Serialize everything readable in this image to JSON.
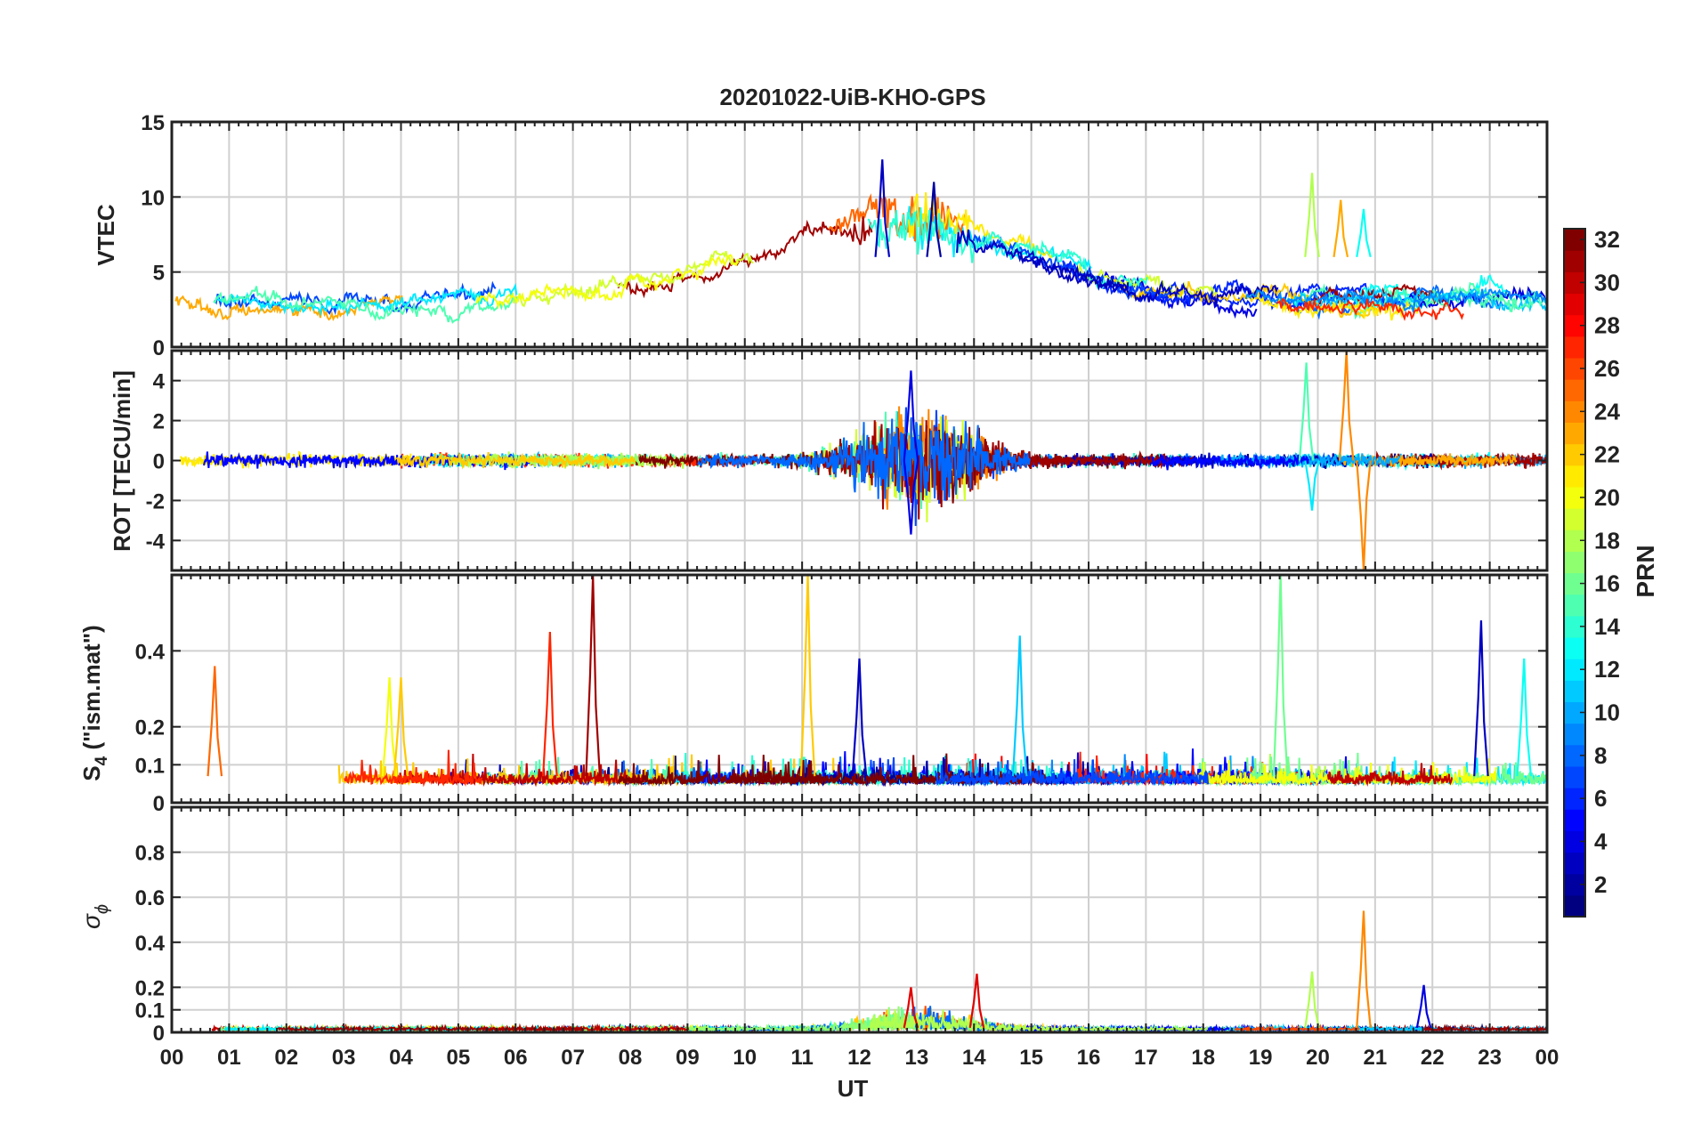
{
  "chart_data": {
    "type": "line",
    "title": "20201022-UiB-KHO-GPS",
    "xlabel": "UT",
    "x_ticks": [
      "00",
      "01",
      "02",
      "03",
      "04",
      "05",
      "06",
      "07",
      "08",
      "09",
      "10",
      "11",
      "12",
      "13",
      "14",
      "15",
      "16",
      "17",
      "18",
      "19",
      "20",
      "21",
      "22",
      "23",
      "00"
    ],
    "xlim": [
      0,
      24
    ],
    "grid": true,
    "colorbar": {
      "label": "PRN",
      "range": [
        1,
        32
      ],
      "ticks": [
        "2",
        "4",
        "6",
        "8",
        "10",
        "12",
        "14",
        "16",
        "18",
        "20",
        "22",
        "24",
        "26",
        "28",
        "30",
        "32"
      ],
      "tick_values": [
        2,
        4,
        6,
        8,
        10,
        12,
        14,
        16,
        18,
        20,
        22,
        24,
        26,
        28,
        30,
        32
      ],
      "colormap": "jet"
    },
    "panels": [
      {
        "id": "vtec",
        "ylabel": "VTEC",
        "ylim": [
          0,
          15
        ],
        "yticks": [
          0,
          5,
          10,
          15
        ],
        "ytick_labels": [
          "0",
          "5",
          "10",
          "15"
        ],
        "description": "Vertical TEC per satellite: ~2-5 at night, broad daytime maximum ~6-9 around 11-14 UT with peaks up to ~12.5 near 12.4 UT",
        "notable_peaks": [
          {
            "t": 12.4,
            "value": 12.5,
            "prn": 3
          },
          {
            "t": 13.3,
            "value": 11.0,
            "prn": 2
          },
          {
            "t": 19.9,
            "value": 11.6,
            "prn": 18
          },
          {
            "t": 20.4,
            "value": 9.8,
            "prn": 23
          },
          {
            "t": 20.8,
            "value": 9.2,
            "prn": 13
          }
        ]
      },
      {
        "id": "rot",
        "ylabel": "ROT [TECU/min]",
        "ylim": [
          -5.5,
          5.5
        ],
        "yticks": [
          -4,
          -2,
          0,
          2,
          4
        ],
        "ytick_labels": [
          "-4",
          "-2",
          "0",
          "2",
          "4"
        ],
        "description": "Rate of TEC change, noise around 0 with enhanced fluctuations 11-15 UT",
        "notable_peaks": [
          {
            "t": 12.9,
            "value": 4.5,
            "prn": 4
          },
          {
            "t": 12.9,
            "value": -3.7,
            "prn": 4
          },
          {
            "t": 20.5,
            "value": 5.5,
            "prn": 24
          },
          {
            "t": 20.8,
            "value": -5.5,
            "prn": 24
          },
          {
            "t": 19.8,
            "value": 4.9,
            "prn": 15
          },
          {
            "t": 19.9,
            "value": -2.5,
            "prn": 12
          }
        ]
      },
      {
        "id": "s4",
        "ylabel": "S4 (\"ism.mat\")",
        "ylabel_main": "S",
        "ylabel_sub": "4",
        "ylabel_rest": " (\"ism.mat\")",
        "ylim": [
          0,
          0.6
        ],
        "yticks": [
          0,
          0.1,
          0.2,
          0.4
        ],
        "ytick_labels": [
          "0",
          "0.1",
          "0.2",
          "0.4"
        ],
        "description": "Amplitude scintillation index, background ~0.05-0.1 with isolated spikes",
        "notable_peaks": [
          {
            "t": 0.75,
            "value": 0.36,
            "prn": 25
          },
          {
            "t": 3.8,
            "value": 0.33,
            "prn": 20
          },
          {
            "t": 4.0,
            "value": 0.33,
            "prn": 22
          },
          {
            "t": 6.6,
            "value": 0.45,
            "prn": 27
          },
          {
            "t": 7.35,
            "value": 0.6,
            "prn": 31
          },
          {
            "t": 11.1,
            "value": 0.6,
            "prn": 22
          },
          {
            "t": 12.0,
            "value": 0.38,
            "prn": 3
          },
          {
            "t": 14.8,
            "value": 0.44,
            "prn": 11
          },
          {
            "t": 19.35,
            "value": 0.6,
            "prn": 16
          },
          {
            "t": 22.85,
            "value": 0.48,
            "prn": 3
          },
          {
            "t": 23.6,
            "value": 0.38,
            "prn": 13
          }
        ]
      },
      {
        "id": "sigma_phi",
        "ylabel": "σ ϕ",
        "ylabel_main": "σ",
        "ylabel_sub": "ϕ",
        "ylim": [
          0,
          1.0
        ],
        "yticks": [
          0,
          0.1,
          0.2,
          0.4,
          0.6,
          0.8
        ],
        "ytick_labels": [
          "0",
          "0.1",
          "0.2",
          "0.4",
          "0.6",
          "0.8"
        ],
        "description": "Phase scintillation index, mostly below 0.05 with enhancement 11-14 UT",
        "notable_peaks": [
          {
            "t": 12.9,
            "value": 0.2,
            "prn": 29
          },
          {
            "t": 14.05,
            "value": 0.26,
            "prn": 29
          },
          {
            "t": 19.9,
            "value": 0.27,
            "prn": 18
          },
          {
            "t": 20.8,
            "value": 0.54,
            "prn": 24
          },
          {
            "t": 21.85,
            "value": 0.21,
            "prn": 4
          }
        ]
      }
    ]
  }
}
